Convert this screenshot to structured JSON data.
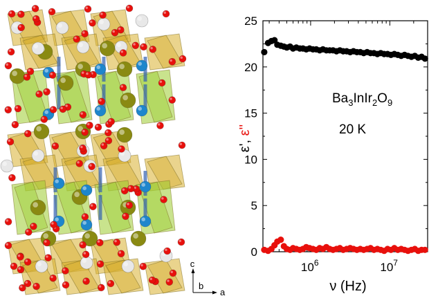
{
  "structure_panel": {
    "axes_label_c": "c",
    "axes_label_b": "b",
    "axes_label_a": "a",
    "colors": {
      "octahedron_yellow": "#d8b030",
      "octahedron_green": "#9ccc30",
      "oxygen": "#e8100c",
      "ba_atom": "#8a8a12",
      "ir_atom": "#1e86cc",
      "in_atom": "#e8e8e8"
    }
  },
  "chart_data": {
    "type": "scatter",
    "xscale": "log",
    "xlim": [
      250000,
      30000000
    ],
    "ylim": [
      0,
      25
    ],
    "yticks": [
      0,
      5,
      10,
      15,
      20,
      25
    ],
    "xticks": [
      {
        "value": 1000000,
        "base": "10",
        "exp": "6"
      },
      {
        "value": 10000000,
        "base": "10",
        "exp": "7"
      }
    ],
    "xlabel": "ν (Hz)",
    "ylabel_part1": "ε'",
    "ylabel_sep": ", ",
    "ylabel_part2": "ε''",
    "annotation_formula": {
      "Ba": "Ba",
      "n1": "3",
      "In": "InIr",
      "n2": "2",
      "O": "O",
      "n3": "9"
    },
    "annotation_temp": "20 K",
    "series": [
      {
        "color": "#000000",
        "x": [
          260000,
          290000,
          320000,
          350000,
          380000,
          420000,
          460000,
          500000,
          550000,
          600000,
          660000,
          730000,
          800000,
          880000,
          970000,
          1070000,
          1180000,
          1300000,
          1430000,
          1580000,
          1740000,
          1920000,
          2120000,
          2340000,
          2580000,
          2850000,
          3150000,
          3480000,
          3840000,
          4240000,
          4680000,
          5170000,
          5710000,
          6300000,
          6960000,
          7680000,
          8480000,
          9360000,
          10340000,
          11410000,
          12600000,
          13910000,
          15360000,
          16960000,
          18720000,
          20670000,
          22820000,
          25200000,
          27800000
        ],
        "y": [
          21.6,
          22.6,
          22.8,
          22.9,
          22.4,
          22.3,
          22.2,
          22.1,
          22.2,
          22.0,
          22.1,
          22.0,
          22.0,
          21.9,
          22.0,
          21.9,
          21.9,
          21.8,
          21.9,
          21.8,
          21.8,
          21.8,
          21.7,
          21.8,
          21.7,
          21.7,
          21.6,
          21.7,
          21.6,
          21.6,
          21.5,
          21.6,
          21.5,
          21.5,
          21.4,
          21.5,
          21.4,
          21.4,
          21.3,
          21.4,
          21.3,
          21.2,
          21.3,
          21.2,
          21.1,
          21.2,
          21.0,
          21.1,
          20.9
        ]
      },
      {
        "color": "#e8100c",
        "x": [
          260000,
          290000,
          320000,
          350000,
          380000,
          420000,
          460000,
          500000,
          550000,
          600000,
          660000,
          730000,
          800000,
          880000,
          970000,
          1070000,
          1180000,
          1300000,
          1430000,
          1580000,
          1740000,
          1920000,
          2120000,
          2340000,
          2580000,
          2850000,
          3150000,
          3480000,
          3840000,
          4240000,
          4680000,
          5170000,
          5710000,
          6300000,
          6960000,
          7680000,
          8480000,
          9360000,
          10340000,
          11410000,
          12600000,
          13910000,
          15360000,
          16960000,
          18720000,
          20670000,
          22820000,
          25200000,
          27800000
        ],
        "y": [
          0.2,
          0.1,
          0.3,
          0.7,
          1.1,
          1.3,
          0.6,
          0.3,
          0.2,
          0.4,
          0.3,
          0.2,
          0.3,
          0.5,
          0.4,
          0.3,
          0.2,
          0.4,
          0.3,
          0.5,
          0.3,
          0.2,
          0.3,
          0.4,
          0.2,
          0.3,
          0.4,
          0.3,
          0.2,
          0.3,
          0.2,
          0.3,
          0.4,
          0.2,
          0.3,
          0.2,
          0.1,
          0.3,
          0.2,
          0.4,
          0.2,
          0.3,
          0.2,
          0.1,
          0.2,
          0.3,
          0.1,
          0.2,
          0.2
        ]
      }
    ]
  }
}
